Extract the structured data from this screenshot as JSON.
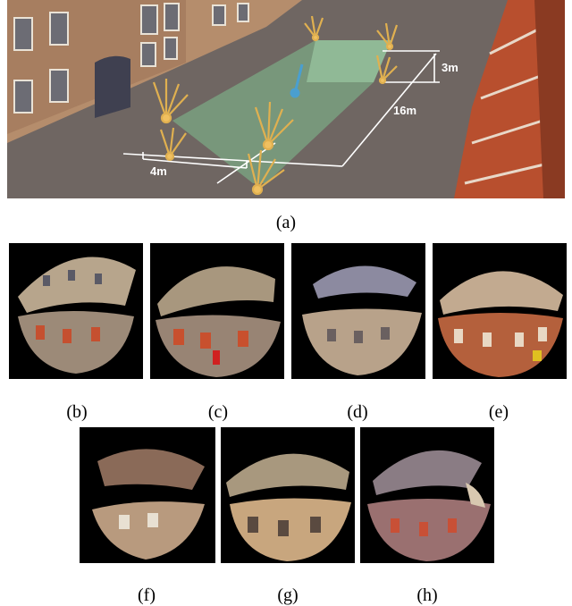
{
  "figure": {
    "scene": {
      "caption": "(a)",
      "dimensions": {
        "width": "4m",
        "length": "16m",
        "height": "3m"
      }
    },
    "panels": [
      {
        "caption": "(b)"
      },
      {
        "caption": "(c)"
      },
      {
        "caption": "(d)"
      },
      {
        "caption": "(e)"
      },
      {
        "caption": "(f)"
      },
      {
        "caption": "(g)"
      },
      {
        "caption": "(h)"
      }
    ]
  }
}
